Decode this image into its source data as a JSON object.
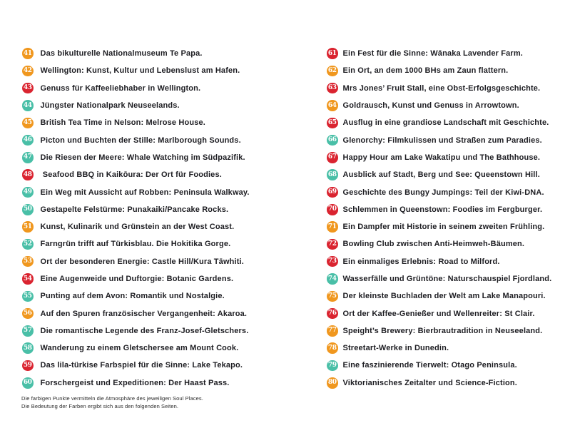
{
  "colors": {
    "orange": "#F0971E",
    "red": "#DA2430",
    "teal": "#49BFA7",
    "text": "#1d1d22"
  },
  "footer": {
    "line1": "Die farbigen Punkte vermitteln die Atmosphäre des jeweiligen Soul Places.",
    "line2": "Die Bedeutung der Farben ergibt sich aus den folgenden Seiten."
  },
  "list": {
    "items": [
      {
        "number": "41",
        "color": "orange",
        "text": "Das bikulturelle Nationalmuseum Te Papa."
      },
      {
        "number": "42",
        "color": "orange",
        "text": "Wellington: Kunst, Kultur und Lebenslust am Hafen."
      },
      {
        "number": "43",
        "color": "red",
        "text": "Genuss für Kaffeeliebhaber in Wellington."
      },
      {
        "number": "44",
        "color": "teal",
        "text": "Jüngster Nationalpark Neuseelands."
      },
      {
        "number": "45",
        "color": "orange",
        "text": "British Tea Time in Nelson: Melrose House."
      },
      {
        "number": "46",
        "color": "teal",
        "text": "Picton und Buchten der Stille: Marlborough Sounds."
      },
      {
        "number": "47",
        "color": "teal",
        "text": "Die Riesen der Meere: Whale Watching im Südpazifik."
      },
      {
        "number": "48",
        "color": "red",
        "text": " Seafood BBQ in Kaikōura: Der Ort für Foodies."
      },
      {
        "number": "49",
        "color": "teal",
        "text": "Ein Weg mit Aussicht auf Robben: Peninsula Walkway."
      },
      {
        "number": "50",
        "color": "teal",
        "text": "Gestapelte Felstürme: Punakaiki/Pancake Rocks."
      },
      {
        "number": "51",
        "color": "orange",
        "text": "Kunst, Kulinarik und Grünstein an der West Coast."
      },
      {
        "number": "52",
        "color": "teal",
        "text": "Farngrün trifft auf Türkisblau. Die Hokitika Gorge."
      },
      {
        "number": "53",
        "color": "orange",
        "text": "Ort der besonderen Energie: Castle Hill/Kura Tāwhiti."
      },
      {
        "number": "54",
        "color": "red",
        "text": "Eine Augenweide und Duftorgie: Botanic Gardens."
      },
      {
        "number": "55",
        "color": "teal",
        "text": "Punting auf dem Avon: Romantik und Nostalgie."
      },
      {
        "number": "56",
        "color": "orange",
        "text": "Auf den Spuren französischer Vergangenheit: Akaroa."
      },
      {
        "number": "57",
        "color": "teal",
        "text": "Die romantische Legende des Franz-Josef-Gletschers."
      },
      {
        "number": "58",
        "color": "teal",
        "text": "Wanderung zu einem Gletschersee am Mount Cook."
      },
      {
        "number": "59",
        "color": "red",
        "text": "Das lila-türkise Farbspiel für die Sinne: Lake Tekapo."
      },
      {
        "number": "60",
        "color": "teal",
        "text": "Forschergeist und Expeditionen: Der Haast Pass."
      },
      {
        "number": "61",
        "color": "red",
        "text": "Ein Fest für die Sinne: Wānaka Lavender Farm."
      },
      {
        "number": "62",
        "color": "orange",
        "text": "Ein Ort, an dem 1000 BHs am Zaun flattern."
      },
      {
        "number": "63",
        "color": "red",
        "text": "Mrs Jones’ Fruit Stall, eine Obst-Erfolgsgeschichte."
      },
      {
        "number": "64",
        "color": "orange",
        "text": "Goldrausch, Kunst und Genuss in Arrowtown."
      },
      {
        "number": "65",
        "color": "red",
        "text": "Ausflug in eine grandiose Landschaft mit Geschichte."
      },
      {
        "number": "66",
        "color": "teal",
        "text": "Glenorchy: Filmkulissen und Straßen zum Paradies."
      },
      {
        "number": "67",
        "color": "red",
        "text": "Happy Hour am Lake Wakatipu und The Bathhouse."
      },
      {
        "number": "68",
        "color": "teal",
        "text": "Ausblick auf Stadt, Berg und See: Queenstown Hill."
      },
      {
        "number": "69",
        "color": "red",
        "text": "Geschichte des Bungy Jumpings: Teil der Kiwi-DNA."
      },
      {
        "number": "70",
        "color": "red",
        "text": "Schlemmen in Queenstown: Foodies im Fergburger."
      },
      {
        "number": "71",
        "color": "orange",
        "text": "Ein Dampfer mit Historie in seinem zweiten Frühling."
      },
      {
        "number": "72",
        "color": "red",
        "text": "Bowling Club zwischen Anti-Heimweh-Bäumen."
      },
      {
        "number": "73",
        "color": "red",
        "text": "Ein einmaliges Erlebnis: Road to Milford."
      },
      {
        "number": "74",
        "color": "teal",
        "text": "Wasserfälle und Grüntöne: Naturschauspiel Fjordland."
      },
      {
        "number": "75",
        "color": "orange",
        "text": "Der kleinste Buchladen der Welt am Lake Manapouri."
      },
      {
        "number": "76",
        "color": "red",
        "text": "Ort der Kaffee-Genießer und Wellenreiter: St Clair."
      },
      {
        "number": "77",
        "color": "orange",
        "text": "Speight’s Brewery: Bierbrautradition in Neuseeland."
      },
      {
        "number": "78",
        "color": "orange",
        "text": "Streetart-Werke in Dunedin."
      },
      {
        "number": "79",
        "color": "teal",
        "text": "Eine faszinierende Tierwelt: Otago Peninsula."
      },
      {
        "number": "80",
        "color": "orange",
        "text": "Viktorianisches Zeitalter und Science-Fiction."
      }
    ]
  }
}
